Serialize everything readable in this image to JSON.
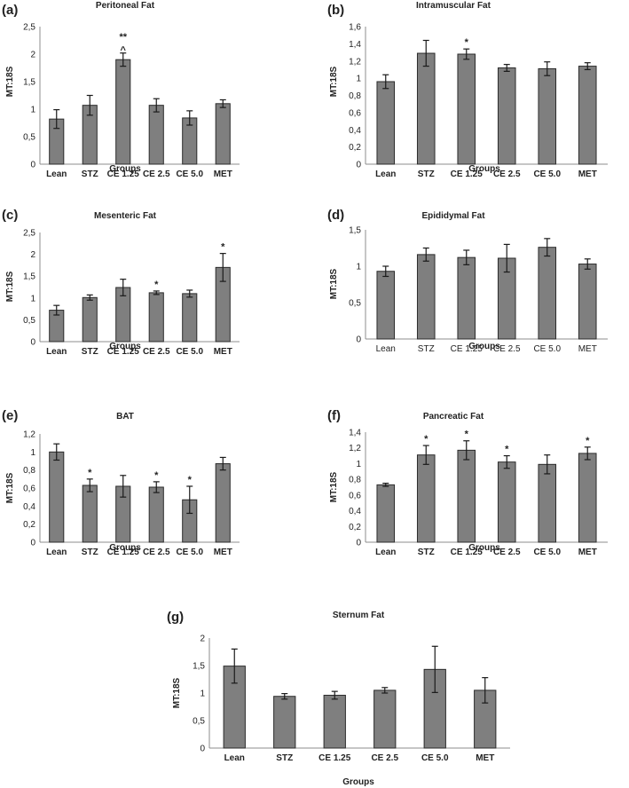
{
  "chart_data": [
    {
      "panel": "(a)",
      "type": "bar",
      "title": "Peritoneal Fat",
      "xlabel": "Groups",
      "ylabel": "MT:18S",
      "categories": [
        "Lean",
        "STZ",
        "CE 1.25",
        "CE 2.5",
        "CE 5.0",
        "MET"
      ],
      "values": [
        0.82,
        1.07,
        1.9,
        1.07,
        0.84,
        1.1
      ],
      "errors": [
        0.17,
        0.18,
        0.12,
        0.12,
        0.13,
        0.07
      ],
      "significance": [
        "",
        "",
        "**\n^",
        "",
        "",
        ""
      ],
      "ylim": [
        0,
        2.5
      ],
      "yticks": [
        "0",
        "0,5",
        "1",
        "1,5",
        "2",
        "2,5"
      ],
      "bar_color": "#7f7f7f"
    },
    {
      "panel": "(b)",
      "type": "bar",
      "title": "Intramuscular Fat",
      "xlabel": "Groups",
      "ylabel": "MT:18S",
      "categories": [
        "Lean",
        "STZ",
        "CE 1.25",
        "CE 2.5",
        "CE 5.0",
        "MET"
      ],
      "values": [
        0.96,
        1.29,
        1.28,
        1.12,
        1.11,
        1.14
      ],
      "errors": [
        0.08,
        0.15,
        0.06,
        0.04,
        0.08,
        0.04
      ],
      "significance": [
        "",
        "",
        "*",
        "",
        "",
        ""
      ],
      "ylim": [
        0,
        1.6
      ],
      "yticks": [
        "0",
        "0,2",
        "0,4",
        "0,6",
        "0,8",
        "1",
        "1,2",
        "1,4",
        "1,6"
      ],
      "bar_color": "#7f7f7f"
    },
    {
      "panel": "(c)",
      "type": "bar",
      "title": "Mesenteric Fat",
      "xlabel": "Groups",
      "ylabel": "MT:18S",
      "categories": [
        "Lean",
        "STZ",
        "CE 1.25",
        "CE 2.5",
        "CE 5.0",
        "MET"
      ],
      "values": [
        0.72,
        1.01,
        1.24,
        1.12,
        1.1,
        1.7
      ],
      "errors": [
        0.11,
        0.06,
        0.19,
        0.04,
        0.08,
        0.32
      ],
      "significance": [
        "",
        "",
        "",
        "*",
        "",
        "*"
      ],
      "ylim": [
        0,
        2.5
      ],
      "yticks": [
        "0",
        "0,5",
        "1",
        "1,5",
        "2",
        "2,5"
      ],
      "bar_color": "#7f7f7f"
    },
    {
      "panel": "(d)",
      "type": "bar",
      "title": "Epididymal Fat",
      "xlabel": "Groups",
      "ylabel": "MT:18S",
      "categories": [
        "Lean",
        "STZ",
        "CE 1.25",
        "CE 2.5",
        "CE 5.0",
        "MET"
      ],
      "values": [
        0.93,
        1.16,
        1.12,
        1.11,
        1.26,
        1.03
      ],
      "errors": [
        0.07,
        0.09,
        0.1,
        0.19,
        0.12,
        0.07
      ],
      "significance": [
        "",
        "",
        "",
        "",
        "",
        ""
      ],
      "ylim": [
        0,
        1.5
      ],
      "yticks": [
        "0",
        "0,5",
        "1",
        "1,5"
      ],
      "bar_color": "#7f7f7f"
    },
    {
      "panel": "(e)",
      "type": "bar",
      "title": "BAT",
      "xlabel": "Groups",
      "ylabel": "MT:18S",
      "categories": [
        "Lean",
        "STZ",
        "CE 1.25",
        "CE 2.5",
        "CE 5.0",
        "MET"
      ],
      "values": [
        1.0,
        0.63,
        0.62,
        0.61,
        0.47,
        0.87
      ],
      "errors": [
        0.09,
        0.07,
        0.12,
        0.06,
        0.15,
        0.07
      ],
      "significance": [
        "",
        "*",
        "",
        "*",
        "*",
        ""
      ],
      "ylim": [
        0,
        1.2
      ],
      "yticks": [
        "0",
        "0,2",
        "0,4",
        "0,6",
        "0,8",
        "1",
        "1,2"
      ],
      "bar_color": "#7f7f7f"
    },
    {
      "panel": "(f)",
      "type": "bar",
      "title": "Pancreatic Fat",
      "xlabel": "Groups",
      "ylabel": "MT:18S",
      "categories": [
        "Lean",
        "STZ",
        "CE 1.25",
        "CE 2.5",
        "CE 5.0",
        "MET"
      ],
      "values": [
        0.73,
        1.11,
        1.17,
        1.02,
        0.99,
        1.13
      ],
      "errors": [
        0.02,
        0.12,
        0.12,
        0.08,
        0.12,
        0.08
      ],
      "significance": [
        "",
        "*",
        "*",
        "*",
        "",
        "*"
      ],
      "ylim": [
        0,
        1.4
      ],
      "yticks": [
        "0",
        "0,2",
        "0,4",
        "0,6",
        "0,8",
        "1",
        "1,2",
        "1,4"
      ],
      "bar_color": "#7f7f7f"
    },
    {
      "panel": "(g)",
      "type": "bar",
      "title": "Sternum Fat",
      "xlabel": "Groups",
      "ylabel": "MT:18S",
      "categories": [
        "Lean",
        "STZ",
        "CE 1.25",
        "CE 2.5",
        "CE 5.0",
        "MET"
      ],
      "values": [
        1.49,
        0.94,
        0.96,
        1.05,
        1.43,
        1.05
      ],
      "errors": [
        0.31,
        0.05,
        0.07,
        0.05,
        0.42,
        0.23
      ],
      "significance": [
        "",
        "",
        "",
        "",
        "",
        ""
      ],
      "ylim": [
        0,
        2
      ],
      "yticks": [
        "0",
        "0,5",
        "1",
        "1,5",
        "2"
      ],
      "bar_color": "#7f7f7f"
    }
  ]
}
